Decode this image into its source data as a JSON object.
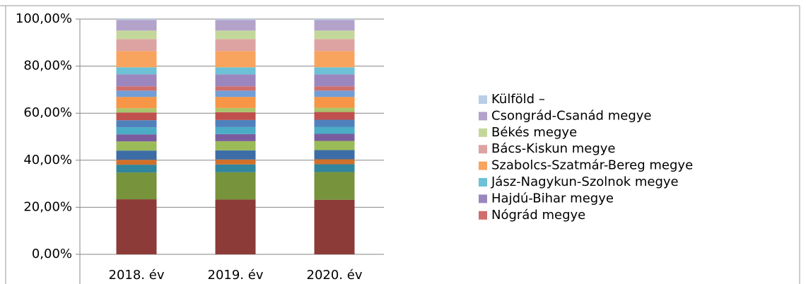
{
  "chart_data": {
    "type": "stacked_bar",
    "categories": [
      "2018. év",
      "2019. év",
      "2020. év"
    ],
    "ylim": [
      0,
      100
    ],
    "yticks": [
      {
        "value": 0,
        "label": "0,00%"
      },
      {
        "value": 20,
        "label": "20,00%"
      },
      {
        "value": 40,
        "label": "40,00%"
      },
      {
        "value": 60,
        "label": "60,00%"
      },
      {
        "value": 80,
        "label": "80,00%"
      },
      {
        "value": 100,
        "label": "100,00%"
      }
    ],
    "grid": true,
    "legend": "right",
    "series": [
      {
        "name": null,
        "color": "#8C3B38",
        "values": [
          23.4,
          23.3,
          23.2
        ]
      },
      {
        "name": null,
        "color": "#77933C",
        "values": [
          11.4,
          11.6,
          11.8
        ]
      },
      {
        "name": null,
        "color": "#31859C",
        "values": [
          3.3,
          3.3,
          3.3
        ]
      },
      {
        "name": null,
        "color": "#D0702A",
        "values": [
          2.1,
          2.1,
          2.1
        ]
      },
      {
        "name": null,
        "color": "#3D6DA6",
        "values": [
          3.9,
          3.9,
          3.9
        ]
      },
      {
        "name": null,
        "color": "#9BBB59",
        "values": [
          3.9,
          3.9,
          3.9
        ]
      },
      {
        "name": null,
        "color": "#7A5C9E",
        "values": [
          3.0,
          3.0,
          3.0
        ]
      },
      {
        "name": null,
        "color": "#4BACC6",
        "values": [
          3.0,
          3.0,
          3.0
        ]
      },
      {
        "name": null,
        "color": "#4F81BD",
        "values": [
          3.0,
          3.0,
          3.0
        ]
      },
      {
        "name": null,
        "color": "#C0504D",
        "values": [
          3.3,
          3.3,
          3.3
        ]
      },
      {
        "name": null,
        "color": "#A9C56B",
        "values": [
          1.8,
          1.8,
          1.8
        ]
      },
      {
        "name": null,
        "color": "#F79646",
        "values": [
          4.8,
          4.7,
          4.6
        ]
      },
      {
        "name": null,
        "color": "#729ED6",
        "values": [
          2.7,
          2.7,
          2.7
        ]
      },
      {
        "name": "Nógrád  megye",
        "color": "#CF6E6B",
        "values": [
          1.8,
          1.8,
          1.8
        ]
      },
      {
        "name": "Hajdú-Bihar megye",
        "color": "#9C86BE",
        "values": [
          5.1,
          5.1,
          5.1
        ]
      },
      {
        "name": "Jász-Nagykun-Szolnok megye",
        "color": "#6CC1D6",
        "values": [
          3.0,
          3.0,
          3.0
        ]
      },
      {
        "name": "Szabolcs-Szatmár-Bereg megye",
        "color": "#F9A45E",
        "values": [
          6.9,
          6.9,
          6.9
        ]
      },
      {
        "name": "Bács-Kiskun  megye",
        "color": "#DDA3A2",
        "values": [
          5.1,
          5.1,
          5.1
        ]
      },
      {
        "name": "Békés megye",
        "color": "#C4D79B",
        "values": [
          3.6,
          3.6,
          3.6
        ]
      },
      {
        "name": "Csongrád-Csanád megye",
        "color": "#B3A2C9",
        "values": [
          4.5,
          4.5,
          4.5
        ]
      },
      {
        "name": "Külföld –",
        "color": "#B9CDE5",
        "values": [
          0.4,
          0.4,
          0.4
        ]
      }
    ]
  }
}
